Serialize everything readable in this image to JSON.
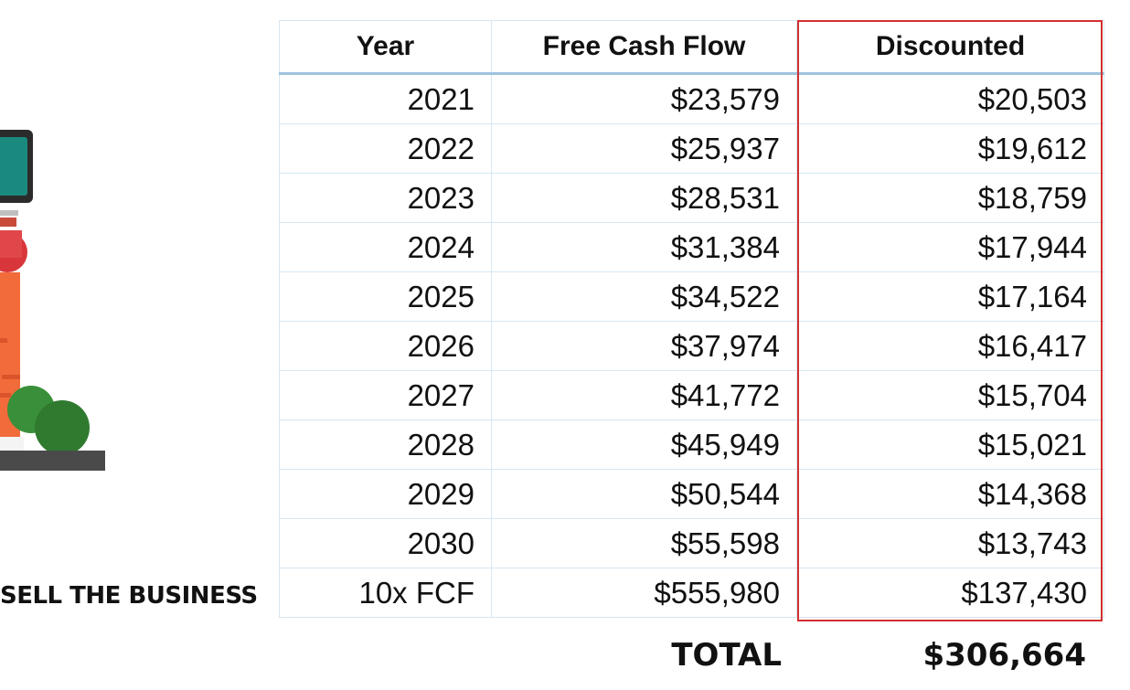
{
  "side_caption": "SELL THE BUSINESS",
  "table": {
    "headers": [
      "Year",
      "Free Cash Flow",
      "Discounted"
    ],
    "rows": [
      [
        "2021",
        "$23,579",
        "$20,503"
      ],
      [
        "2022",
        "$25,937",
        "$19,612"
      ],
      [
        "2023",
        "$28,531",
        "$18,759"
      ],
      [
        "2024",
        "$31,384",
        "$17,944"
      ],
      [
        "2025",
        "$34,522",
        "$17,164"
      ],
      [
        "2026",
        "$37,974",
        "$16,417"
      ],
      [
        "2027",
        "$41,772",
        "$15,704"
      ],
      [
        "2028",
        "$45,949",
        "$15,021"
      ],
      [
        "2029",
        "$50,544",
        "$14,368"
      ],
      [
        "2030",
        "$55,598",
        "$13,743"
      ],
      [
        "10x FCF",
        "$555,980",
        "$137,430"
      ]
    ]
  },
  "total": {
    "label": "TOTAL",
    "value": "$306,664"
  },
  "colors": {
    "highlight": "#d32f2f",
    "header_rule": "#9ec3df",
    "grid": "#d6e6f2"
  },
  "icons": {
    "illustration": "business-building-icon"
  }
}
